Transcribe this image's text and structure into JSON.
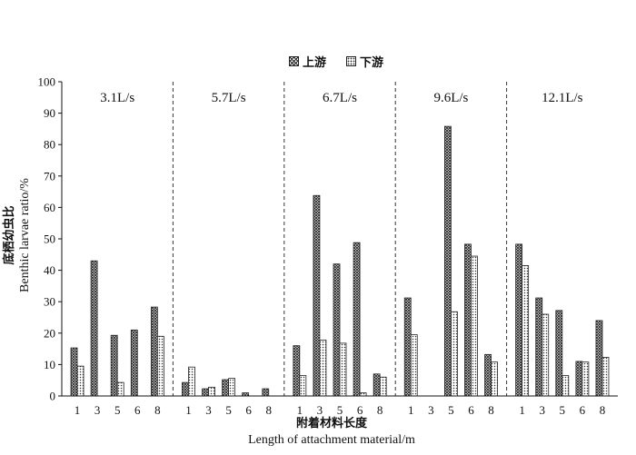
{
  "chart_data": {
    "type": "bar",
    "ylim": [
      0,
      100
    ],
    "yticks": [
      0,
      10,
      20,
      30,
      40,
      50,
      60,
      70,
      80,
      90,
      100
    ],
    "ylabel_cn": "底栖幼虫比",
    "ylabel_en": "Benthic larvae ratio/%",
    "xlabel_cn": "附着材料长度",
    "xlabel_en": "Length of attachment material/m",
    "legend_placement": "top-center",
    "series": [
      {
        "name": "上游",
        "pattern": "crosshatch"
      },
      {
        "name": "下游",
        "pattern": "dotted"
      }
    ],
    "groups": [
      {
        "label": "3.1L/s",
        "categories": [
          "1",
          "3",
          "5",
          "6",
          "8"
        ],
        "upstream": [
          15.3,
          43,
          19.3,
          21,
          28.3
        ],
        "downstream": [
          9.5,
          0,
          4.3,
          0,
          19
        ]
      },
      {
        "label": "5.7L/s",
        "categories": [
          "1",
          "3",
          "5",
          "6",
          "8"
        ],
        "upstream": [
          4.3,
          2.3,
          5.2,
          1,
          2.3
        ],
        "downstream": [
          9.2,
          2.8,
          5.6,
          0,
          0
        ]
      },
      {
        "label": "6.7L/s",
        "categories": [
          "1",
          "3",
          "5",
          "6",
          "8"
        ],
        "upstream": [
          16,
          63.8,
          42,
          48.8,
          7
        ],
        "downstream": [
          6.5,
          17.8,
          16.8,
          1,
          6
        ]
      },
      {
        "label": "9.6L/s",
        "categories": [
          "1",
          "3",
          "5",
          "6",
          "8"
        ],
        "upstream": [
          31.2,
          0,
          85.8,
          48.3,
          13.2
        ],
        "downstream": [
          19.5,
          0,
          26.8,
          44.5,
          10.8
        ]
      },
      {
        "label": "12.1L/s",
        "categories": [
          "1",
          "3",
          "5",
          "6",
          "8"
        ],
        "upstream": [
          48.3,
          31.2,
          27.2,
          11,
          24
        ],
        "downstream": [
          41.5,
          26,
          6.5,
          10.8,
          12.3
        ]
      }
    ]
  }
}
